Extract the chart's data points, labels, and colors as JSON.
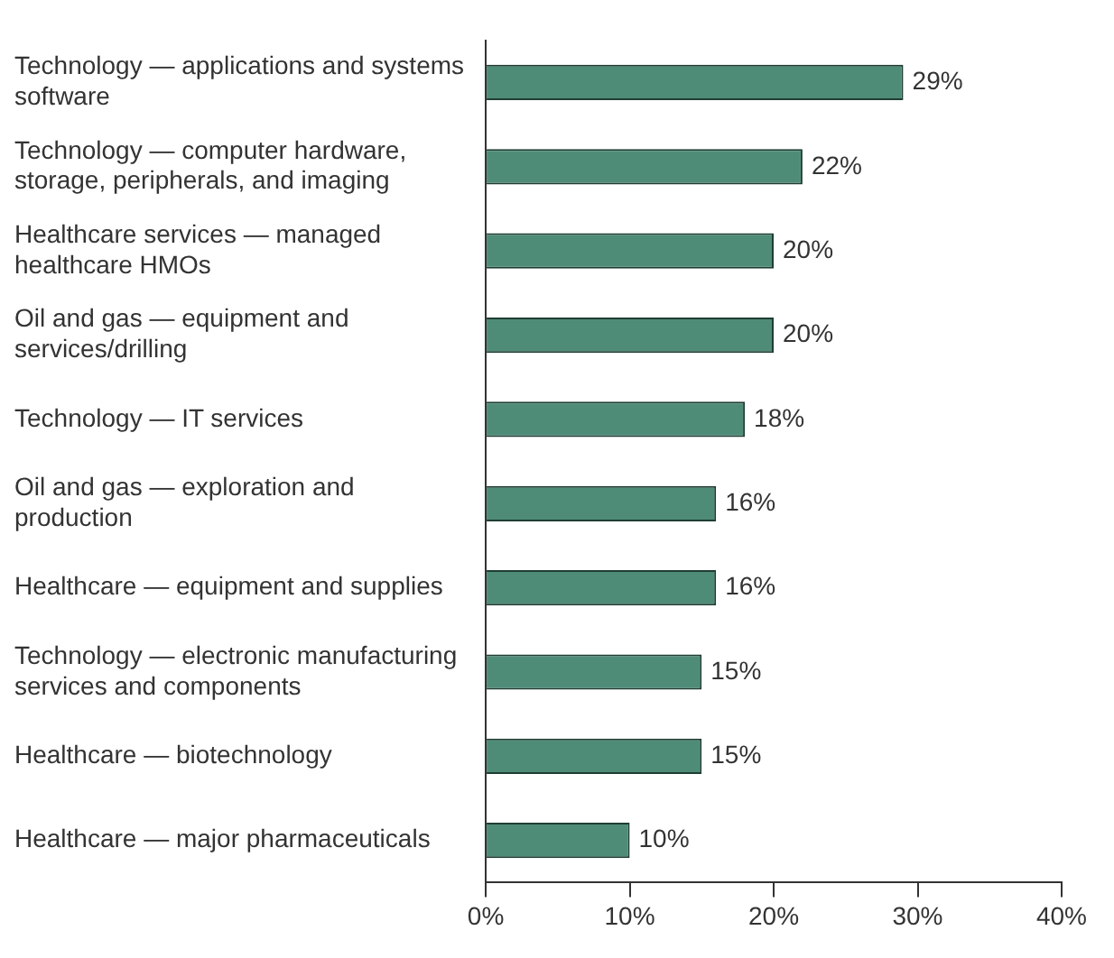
{
  "chart_data": {
    "type": "bar",
    "orientation": "horizontal",
    "categories": [
      "Technology — applications and systems software",
      "Technology — computer hardware, storage, peripherals, and imaging",
      "Healthcare services — managed healthcare HMOs",
      "Oil and gas — equipment and services/drilling",
      "Technology — IT services",
      "Oil and gas — exploration and production",
      "Healthcare — equipment and supplies",
      "Technology — electronic manufacturing services and components",
      "Healthcare — biotechnology",
      "Healthcare — major pharmaceuticals"
    ],
    "values": [
      29,
      22,
      20,
      20,
      18,
      16,
      16,
      15,
      15,
      10
    ],
    "value_labels": [
      "29%",
      "22%",
      "20%",
      "20%",
      "18%",
      "16%",
      "16%",
      "15%",
      "15%",
      "10%"
    ],
    "color": "#4e8c78",
    "xlim": [
      0,
      40
    ],
    "xticks": [
      {
        "value": 0,
        "label": "0%"
      },
      {
        "value": 10,
        "label": "10%"
      },
      {
        "value": 20,
        "label": "20%"
      },
      {
        "value": 30,
        "label": "30%"
      },
      {
        "value": 40,
        "label": "40%"
      }
    ],
    "grid": false,
    "legend": false
  }
}
